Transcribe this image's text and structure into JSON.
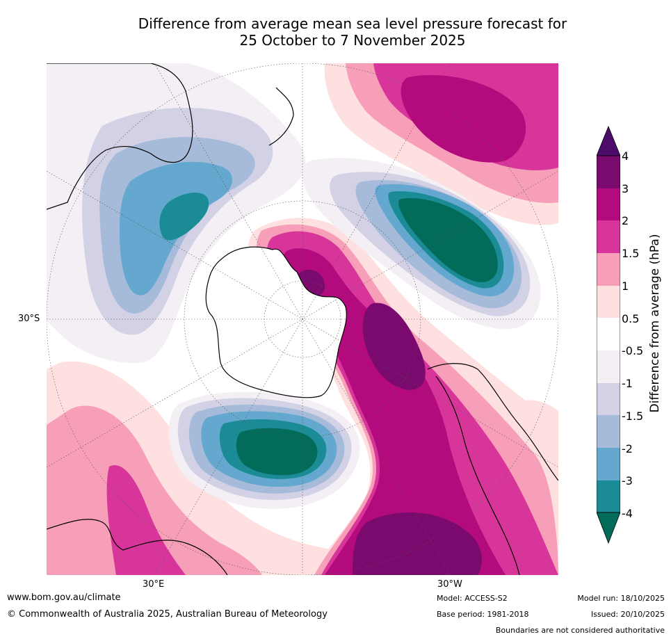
{
  "title": {
    "line1": "Difference from average mean sea level pressure forecast for",
    "line2": "25 October to 7 November 2025"
  },
  "map": {
    "projection": "south polar stereographic",
    "lat_label": "30°S",
    "lon_labels": [
      "30°E",
      "30°W"
    ],
    "features": [
      "Antarctica",
      "Australia",
      "New Zealand",
      "South America",
      "Africa"
    ]
  },
  "legend": {
    "title": "Difference from average (hPa)",
    "ticks": [
      "4",
      "3",
      "2",
      "1.5",
      "1",
      "0.5",
      "-0.5",
      "-1",
      "-1.5",
      "-2",
      "-3",
      "-4"
    ],
    "bin_colors": [
      "#4b0c6b",
      "#7b0a6e",
      "#b30a7d",
      "#d8359a",
      "#f79fb8",
      "#fde0df",
      "#ffffff",
      "#f3eff4",
      "#d2d1e5",
      "#a6bbd9",
      "#64a8cf",
      "#1b8c96",
      "#036b59"
    ]
  },
  "footer": {
    "website": "www.bom.gov.au/climate",
    "copyright": "© Commonwealth of Australia 2025, Australian Bureau of Meteorology",
    "model": "Model: ACCESS-S2",
    "base_period": "Base period: 1981-2018",
    "model_run": "Model run: 18/10/2025",
    "issued": "Issued: 20/10/2025",
    "disclaimer": "Boundaries are not considered authoritative"
  }
}
